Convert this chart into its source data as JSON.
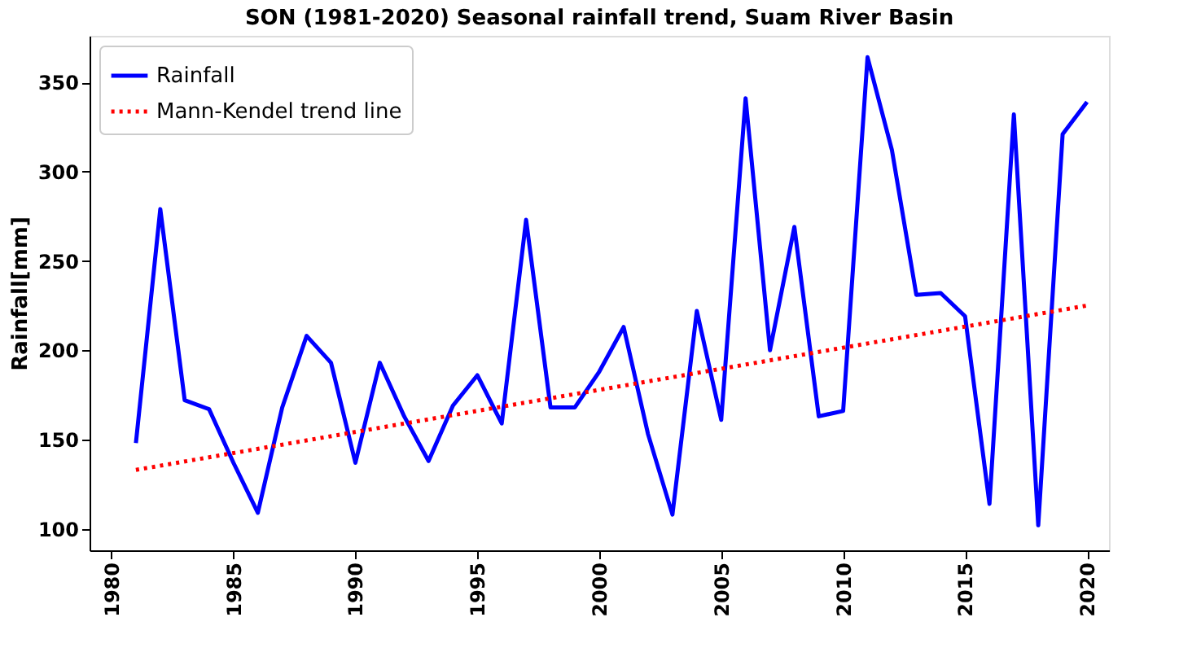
{
  "chart_data": {
    "type": "line",
    "title": "SON (1981-2020) Seasonal rainfall trend, Suam River Basin",
    "ylabel": "Rainfall[mm]",
    "xlim": [
      1979.1,
      2020.9
    ],
    "xticks": [
      1980,
      1985,
      1990,
      1995,
      2000,
      2005,
      2010,
      2015,
      2020
    ],
    "ylim": [
      88,
      376
    ],
    "yticks": [
      100,
      150,
      200,
      250,
      300,
      350
    ],
    "grid": false,
    "legend": "top left",
    "series": [
      {
        "name": "Rainfall",
        "color": "#0000ff",
        "line_style": "solid",
        "x": [
          1981,
          1982,
          1983,
          1984,
          1985,
          1986,
          1987,
          1988,
          1989,
          1990,
          1991,
          1992,
          1993,
          1994,
          1995,
          1996,
          1997,
          1998,
          1999,
          2000,
          2001,
          2002,
          2003,
          2004,
          2005,
          2006,
          2007,
          2008,
          2009,
          2010,
          2011,
          2012,
          2013,
          2014,
          2015,
          2016,
          2017,
          2018,
          2019,
          2020
        ],
        "values": [
          148,
          279,
          172,
          167,
          137,
          109,
          168,
          208,
          193,
          137,
          193,
          163,
          138,
          169,
          186,
          159,
          273,
          168,
          168,
          188,
          213,
          153,
          108,
          222,
          161,
          341,
          200,
          269,
          163,
          166,
          364,
          312,
          231,
          232,
          219,
          114,
          332,
          102,
          321,
          339
        ]
      },
      {
        "name": "Mann-Kendel trend line",
        "color": "#ff0000",
        "line_style": "dotted",
        "x": [
          1981,
          2020
        ],
        "values": [
          133,
          225
        ]
      }
    ]
  }
}
